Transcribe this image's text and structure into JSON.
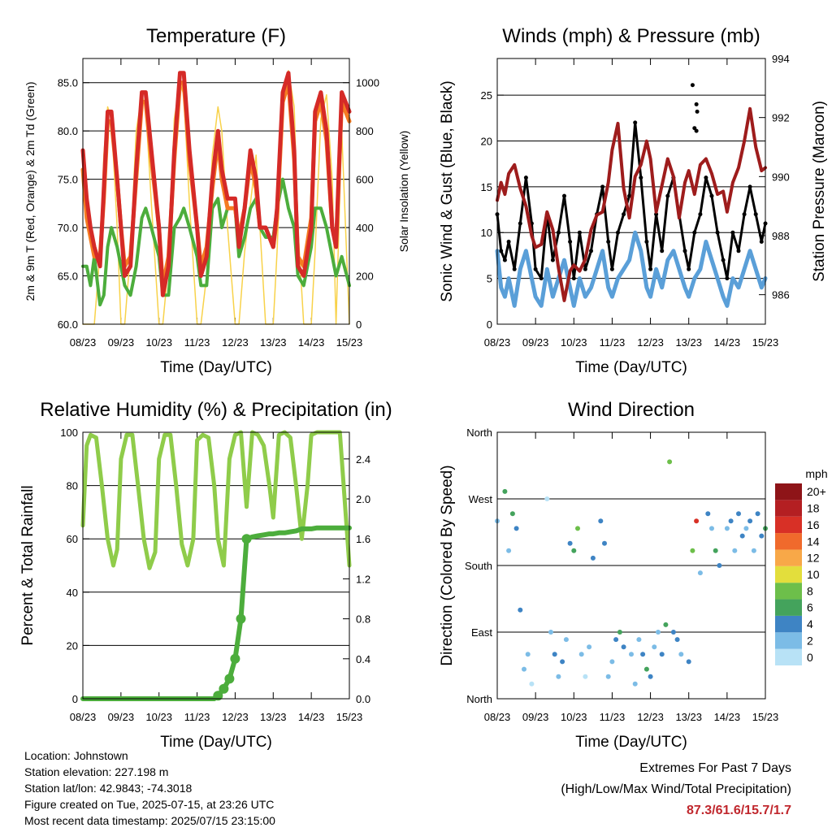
{
  "x_ticks": [
    "08/23",
    "09/23",
    "10/23",
    "11/23",
    "12/23",
    "13/23",
    "14/23",
    "15/23"
  ],
  "colors": {
    "t2": "#d52a27",
    "t9": "#f57c22",
    "td": "#4cad3c",
    "solar": "#f8d24a",
    "wind": "#5a9fd8",
    "gust": "#000000",
    "pressure": "#9e1c1c",
    "rh": "#8fcc4a",
    "rain": "#4cad3c"
  },
  "info": {
    "location": "Location: Johnstown",
    "elevation": "Station elevation: 227.198 m",
    "latlon": "Station lat/lon: 42.9843; -74.3018",
    "created": "Figure created on Tue, 2025-07-15, at 23:26 UTC",
    "recent": "Most recent data timestamp: 2025/07/15 23:15:00"
  },
  "extremes": {
    "title": "Extremes For Past 7 Days",
    "subtitle": "(High/Low/Max Wind/Total Precipitation)",
    "values": "87.3/61.6/15.7/1.7"
  },
  "chart_data": [
    {
      "id": "temperature",
      "type": "line",
      "title": "Temperature (F)",
      "xlabel": "Time (Day/UTC)",
      "ylabel": "2m & 9m T (Red, Orange) & 2m Td (Green)",
      "ylabel_right": "Solar Insolation (Yellow)",
      "ylim": [
        60,
        87.5
      ],
      "yticks": [
        "60.0",
        "65.0",
        "70.0",
        "75.0",
        "80.0",
        "85.0"
      ],
      "ylim_right": [
        0,
        1100
      ],
      "yticks_right": [
        "0",
        "200",
        "400",
        "600",
        "800",
        "1000"
      ],
      "x": [
        0,
        0.1,
        0.2,
        0.3,
        0.45,
        0.55,
        0.65,
        0.75,
        0.9,
        1,
        1.1,
        1.25,
        1.4,
        1.55,
        1.65,
        1.8,
        2,
        2.1,
        2.25,
        2.4,
        2.55,
        2.65,
        2.8,
        3,
        3.1,
        3.25,
        3.4,
        3.55,
        3.65,
        3.8,
        4,
        4.1,
        4.25,
        4.4,
        4.55,
        4.65,
        4.8,
        5,
        5.1,
        5.25,
        5.4,
        5.55,
        5.65,
        5.8,
        6,
        6.1,
        6.25,
        6.4,
        6.55,
        6.65,
        6.8,
        7
      ],
      "series": [
        {
          "name": "2m T",
          "values": [
            78,
            73,
            70,
            68,
            66,
            74,
            82,
            82,
            75,
            70,
            65,
            66,
            76,
            84,
            84,
            78,
            70,
            63,
            66,
            78,
            86,
            86,
            78,
            70,
            65,
            67,
            75,
            80,
            76,
            73,
            73,
            68,
            72,
            78,
            75,
            70,
            70,
            68,
            72,
            84,
            86,
            78,
            66,
            65,
            70,
            82,
            84,
            80,
            70,
            68,
            84,
            82
          ]
        },
        {
          "name": "9m T",
          "values": [
            76,
            71,
            69,
            67,
            67,
            73,
            81,
            81,
            75,
            70,
            66,
            67,
            75,
            83,
            83,
            77,
            70,
            64,
            67,
            77,
            85,
            85,
            77,
            70,
            66,
            68,
            74,
            79,
            75,
            72,
            72,
            69,
            72,
            77,
            74,
            70,
            70,
            68,
            71,
            83,
            85,
            77,
            67,
            66,
            71,
            81,
            83,
            79,
            70,
            68,
            83,
            81
          ]
        },
        {
          "name": "2m Td",
          "values": [
            66,
            66,
            64,
            67,
            62,
            63,
            68,
            70,
            68,
            66,
            64,
            63,
            66,
            71,
            72,
            70,
            67,
            63,
            63,
            70,
            71,
            72,
            70,
            67,
            64,
            64,
            72,
            73,
            70,
            72,
            72,
            67,
            69,
            72,
            73,
            70,
            69,
            69,
            72,
            75,
            72,
            70,
            65,
            64,
            68,
            72,
            72,
            70,
            67,
            65,
            67,
            64
          ]
        },
        {
          "name": "Solar",
          "values": [
            0,
            0,
            0,
            0,
            300,
            700,
            900,
            850,
            400,
            0,
            0,
            300,
            800,
            950,
            900,
            500,
            0,
            0,
            250,
            850,
            1000,
            950,
            500,
            0,
            0,
            200,
            700,
            900,
            800,
            400,
            0,
            0,
            300,
            500,
            700,
            400,
            0,
            0,
            300,
            900,
            1050,
            900,
            400,
            0,
            0,
            300,
            850,
            950,
            600,
            0,
            800,
            0
          ]
        }
      ]
    },
    {
      "id": "winds",
      "type": "line",
      "title": "Winds (mph) & Pressure (mb)",
      "xlabel": "Time (Day/UTC)",
      "ylabel": "Sonic Wind & Gust (Blue, Black)",
      "ylabel_right": "Station Pressure (Maroon)",
      "ylim": [
        0,
        29
      ],
      "yticks": [
        "0",
        "5",
        "10",
        "15",
        "20",
        "25"
      ],
      "ylim_right": [
        985,
        994
      ],
      "yticks_right": [
        "986",
        "988",
        "990",
        "992",
        "994"
      ],
      "x": [
        0,
        0.1,
        0.2,
        0.3,
        0.45,
        0.6,
        0.75,
        0.9,
        1,
        1.15,
        1.3,
        1.45,
        1.6,
        1.75,
        1.9,
        2,
        2.15,
        2.3,
        2.45,
        2.6,
        2.75,
        2.9,
        3,
        3.15,
        3.3,
        3.45,
        3.6,
        3.75,
        3.9,
        4,
        4.15,
        4.3,
        4.45,
        4.6,
        4.75,
        4.9,
        5,
        5.15,
        5.3,
        5.45,
        5.6,
        5.75,
        5.9,
        6,
        6.15,
        6.3,
        6.45,
        6.6,
        6.75,
        6.9,
        7
      ],
      "series": [
        {
          "name": "Sonic Wind",
          "values": [
            8,
            4,
            3,
            5,
            2,
            6,
            8,
            5,
            3,
            2,
            6,
            3,
            5,
            7,
            4,
            2,
            5,
            3,
            4,
            6,
            8,
            4,
            3,
            5,
            6,
            7,
            10,
            8,
            4,
            3,
            6,
            4,
            7,
            8,
            6,
            4,
            3,
            5,
            6,
            9,
            7,
            5,
            3,
            2,
            5,
            4,
            6,
            8,
            6,
            4,
            5
          ]
        },
        {
          "name": "Gust",
          "values": [
            12,
            8,
            7,
            9,
            6,
            11,
            16,
            11,
            6,
            5,
            12,
            7,
            10,
            14,
            9,
            5,
            10,
            6,
            8,
            12,
            15,
            9,
            6,
            10,
            12,
            14,
            22,
            16,
            9,
            6,
            12,
            8,
            14,
            16,
            12,
            8,
            6,
            10,
            12,
            16,
            14,
            10,
            7,
            5,
            10,
            8,
            12,
            15,
            12,
            9,
            11
          ]
        },
        {
          "name": "Pressure",
          "values": [
            989.2,
            989.8,
            989.4,
            990.1,
            990.4,
            989.6,
            989.0,
            988.0,
            987.6,
            987.7,
            988.8,
            988.2,
            986.9,
            985.8,
            986.8,
            987.0,
            986.8,
            987.2,
            988.2,
            988.7,
            988.8,
            989.8,
            990.9,
            991.8,
            989.6,
            988.6,
            990.0,
            990.4,
            991.2,
            990.6,
            988.8,
            989.7,
            990.6,
            990.0,
            988.6,
            989.8,
            990.2,
            989.4,
            990.4,
            990.6,
            990.1,
            989.4,
            989.5,
            988.8,
            989.8,
            990.3,
            991.2,
            992.3,
            991.0,
            990.2,
            990.3
          ]
        }
      ],
      "gust_spikes": [
        [
          5.1,
          26.1
        ],
        [
          5.2,
          24.0
        ],
        [
          5.22,
          23.2
        ],
        [
          5.15,
          21.4
        ],
        [
          5.2,
          21.1
        ]
      ]
    },
    {
      "id": "humidity",
      "type": "line",
      "title": "Relative Humidity (%) & Precipitation (in)",
      "xlabel": "Time (Day/UTC)",
      "ylabel": "Percent & Total Rainfall",
      "ylim": [
        0,
        100
      ],
      "yticks": [
        "0",
        "20",
        "40",
        "60",
        "80",
        "100"
      ],
      "ylim_right": [
        0,
        2.667
      ],
      "yticks_right": [
        "0.0",
        "0.4",
        "0.8",
        "1.2",
        "1.6",
        "2.0",
        "2.4"
      ],
      "x": [
        0,
        0.1,
        0.2,
        0.35,
        0.5,
        0.65,
        0.8,
        0.9,
        1,
        1.15,
        1.3,
        1.45,
        1.6,
        1.75,
        1.9,
        2,
        2.15,
        2.3,
        2.45,
        2.6,
        2.75,
        2.9,
        3,
        3.15,
        3.3,
        3.45,
        3.55,
        3.7,
        3.85,
        4,
        4.15,
        4.3,
        4.45,
        4.6,
        4.75,
        4.9,
        5,
        5.15,
        5.3,
        5.45,
        5.6,
        5.75,
        5.9,
        6,
        6.15,
        6.3,
        6.45,
        6.6,
        6.75,
        6.9,
        7
      ],
      "series": [
        {
          "name": "Relative Humidity",
          "values": [
            65,
            95,
            99,
            98,
            80,
            60,
            50,
            56,
            90,
            99,
            99,
            80,
            60,
            49,
            55,
            90,
            99,
            99,
            80,
            58,
            50,
            60,
            97,
            99,
            98,
            80,
            60,
            50,
            90,
            99,
            100,
            72,
            100,
            99,
            95,
            80,
            68,
            99,
            100,
            98,
            80,
            60,
            80,
            99,
            100,
            100,
            100,
            100,
            100,
            70,
            50
          ]
        },
        {
          "name": "Total Rainfall",
          "values": [
            0,
            0,
            0,
            0,
            0,
            0,
            0,
            0,
            0,
            0,
            0,
            0,
            0,
            0,
            0,
            0,
            0,
            0,
            0,
            0,
            0,
            0,
            0,
            0,
            0,
            0,
            0.03,
            0.1,
            0.2,
            0.4,
            0.8,
            1.6,
            1.62,
            1.63,
            1.64,
            1.65,
            1.65,
            1.66,
            1.66,
            1.67,
            1.68,
            1.7,
            1.7,
            1.7,
            1.71,
            1.71,
            1.71,
            1.71,
            1.71,
            1.71,
            1.71
          ]
        }
      ]
    },
    {
      "id": "direction",
      "type": "scatter",
      "title": "Wind Direction",
      "xlabel": "Time (Day/UTC)",
      "ylabel": "Direction (Colored By Speed)",
      "ylim": [
        0,
        360
      ],
      "yticks": [
        "North",
        "East",
        "South",
        "West",
        "North"
      ],
      "colorbar_title": "mph",
      "colorbar_labels": [
        "0",
        "2",
        "4",
        "6",
        "8",
        "10",
        "12",
        "14",
        "16",
        "18",
        "20+"
      ],
      "colorbar_colors": [
        "#b8e2f6",
        "#7cbce6",
        "#3e84c4",
        "#44a35c",
        "#6dbf4a",
        "#e3de3c",
        "#f8a848",
        "#f06a2c",
        "#d83026",
        "#b41f22",
        "#8e1418"
      ],
      "points_x": [
        0,
        0.2,
        0.3,
        0.4,
        0.5,
        0.6,
        0.7,
        0.8,
        0.9,
        1.3,
        1.4,
        1.5,
        1.6,
        1.7,
        1.8,
        1.9,
        2.0,
        2.1,
        2.2,
        2.3,
        2.4,
        2.5,
        2.7,
        2.8,
        2.9,
        3.0,
        3.1,
        3.2,
        3.3,
        3.5,
        3.6,
        3.7,
        3.8,
        3.9,
        4.0,
        4.1,
        4.2,
        4.3,
        4.4,
        4.5,
        4.6,
        4.7,
        4.8,
        5.0,
        5.1,
        5.2,
        5.3,
        5.5,
        5.6,
        5.7,
        5.8,
        6.0,
        6.1,
        6.2,
        6.3,
        6.4,
        6.5,
        6.6,
        6.7,
        6.8,
        6.9,
        7.0
      ],
      "points_y": [
        240,
        280,
        200,
        250,
        230,
        120,
        40,
        60,
        20,
        270,
        90,
        60,
        30,
        50,
        80,
        210,
        200,
        230,
        60,
        30,
        70,
        190,
        240,
        210,
        30,
        50,
        80,
        90,
        70,
        60,
        20,
        80,
        60,
        40,
        30,
        70,
        90,
        60,
        100,
        320,
        90,
        80,
        60,
        50,
        200,
        240,
        170,
        250,
        230,
        200,
        180,
        230,
        240,
        200,
        250,
        220,
        230,
        240,
        200,
        250,
        220,
        230
      ],
      "points_v": [
        3,
        6,
        2,
        6,
        5,
        4,
        2,
        3,
        1,
        1,
        2,
        4,
        3,
        5,
        2,
        4,
        6,
        9,
        2,
        1,
        3,
        4,
        4,
        5,
        2,
        3,
        4,
        6,
        5,
        3,
        2,
        3,
        5,
        6,
        4,
        2,
        3,
        5,
        6,
        8,
        4,
        5,
        3,
        4,
        9,
        16,
        2,
        4,
        3,
        6,
        5,
        3,
        4,
        2,
        5,
        4,
        3,
        5,
        2,
        5,
        4,
        6
      ]
    }
  ]
}
